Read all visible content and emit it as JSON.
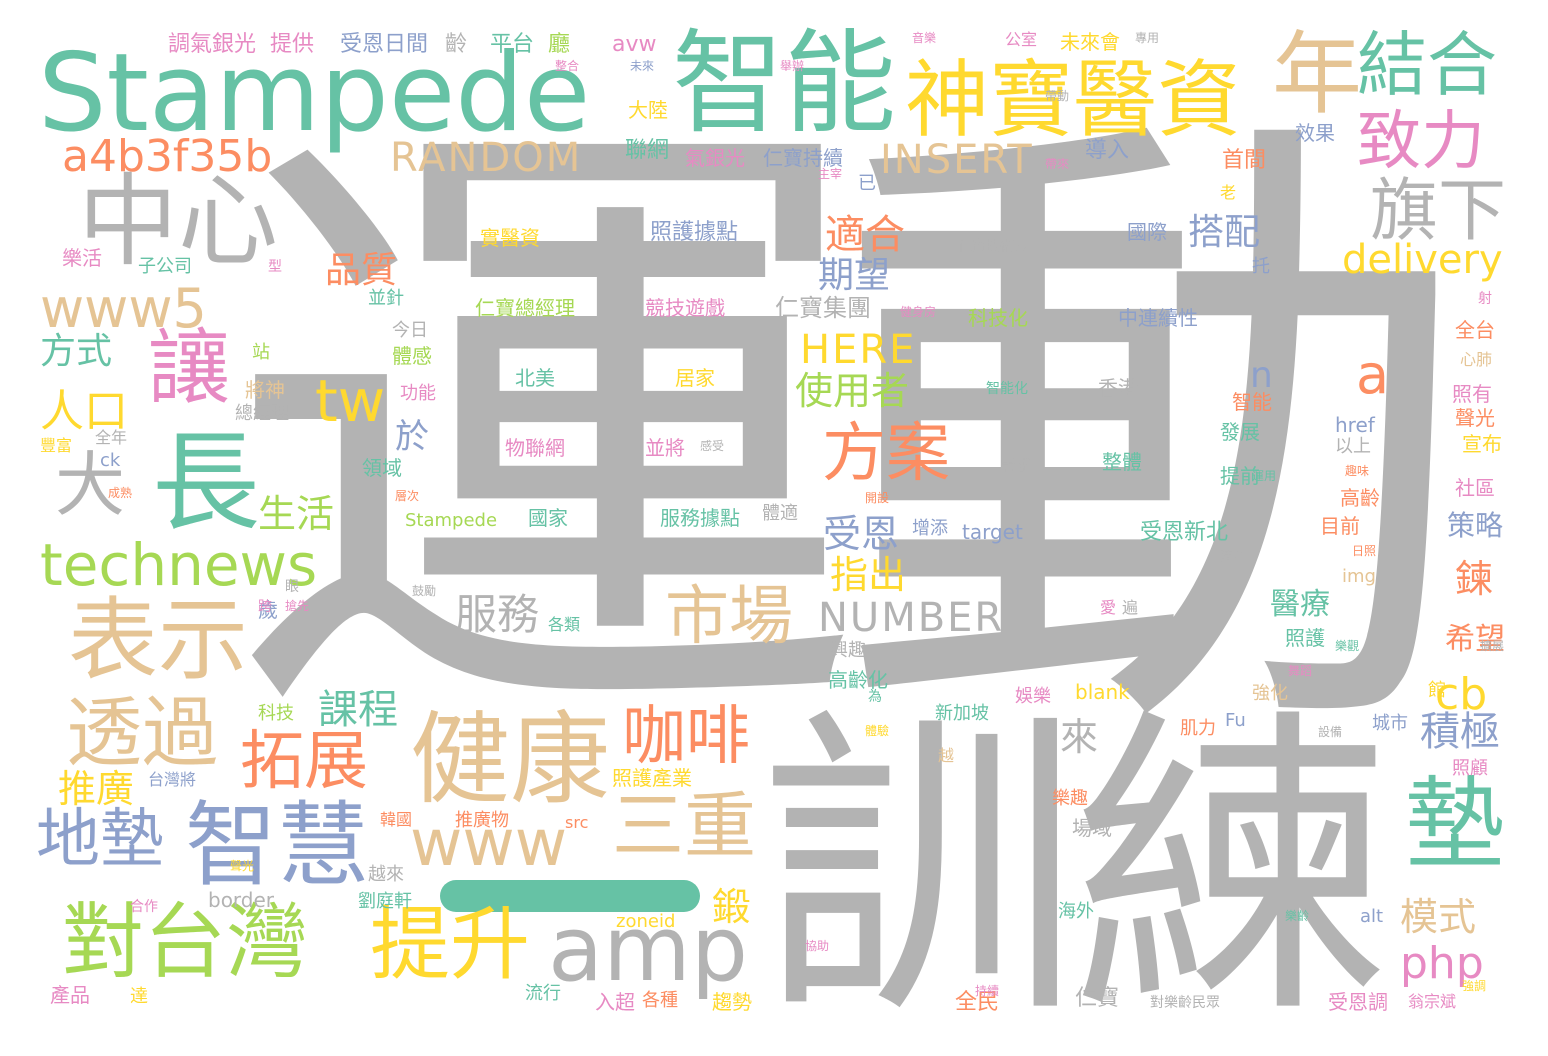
{
  "palette": {
    "gray": "#b3b3b3",
    "green": "#66c2a5",
    "tan": "#e5c494",
    "yellow": "#ffd92f",
    "blue": "#8da0cb",
    "pink": "#e78ac3",
    "lime": "#a6d854",
    "orange": "#fc8d62"
  },
  "bar_color": "green",
  "words": [
    {
      "text": "運動",
      "color": "gray"
    },
    {
      "text": "訓練",
      "color": "gray"
    },
    {
      "text": "Stampede",
      "color": "green"
    },
    {
      "text": "智能",
      "color": "green"
    },
    {
      "text": "神寶醫資",
      "color": "yellow"
    },
    {
      "text": "年",
      "color": "tan"
    },
    {
      "text": "結合",
      "color": "green"
    },
    {
      "text": "中心",
      "color": "gray"
    },
    {
      "text": "a4b3f35b",
      "color": "orange"
    },
    {
      "text": "RANDOM",
      "color": "tan"
    },
    {
      "text": "INSERT",
      "color": "tan"
    },
    {
      "text": "致力",
      "color": "pink"
    },
    {
      "text": "旗下",
      "color": "gray"
    },
    {
      "text": "www5",
      "color": "tan"
    },
    {
      "text": "讓",
      "color": "pink"
    },
    {
      "text": "長",
      "color": "green"
    },
    {
      "text": "大",
      "color": "gray"
    },
    {
      "text": "人口",
      "color": "yellow"
    },
    {
      "text": "方式",
      "color": "green"
    },
    {
      "text": "tw",
      "color": "yellow"
    },
    {
      "text": "品質",
      "color": "orange"
    },
    {
      "text": "適合",
      "color": "orange"
    },
    {
      "text": "期望",
      "color": "blue"
    },
    {
      "text": "搭配",
      "color": "blue"
    },
    {
      "text": "delivery",
      "color": "yellow"
    },
    {
      "text": "HERE",
      "color": "yellow"
    },
    {
      "text": "使用者",
      "color": "lime"
    },
    {
      "text": "仁寶集團",
      "color": "gray"
    },
    {
      "text": "a",
      "color": "orange"
    },
    {
      "text": "n",
      "color": "blue"
    },
    {
      "text": "方案",
      "color": "orange"
    },
    {
      "text": "technews",
      "color": "lime"
    },
    {
      "text": "生活",
      "color": "lime"
    },
    {
      "text": "表示",
      "color": "tan"
    },
    {
      "text": "受恩",
      "color": "blue"
    },
    {
      "text": "指出",
      "color": "yellow"
    },
    {
      "text": "服務",
      "color": "gray"
    },
    {
      "text": "市場",
      "color": "tan"
    },
    {
      "text": "NUMBER",
      "color": "gray"
    },
    {
      "text": "透過",
      "color": "tan"
    },
    {
      "text": "課程",
      "color": "green"
    },
    {
      "text": "拓展",
      "color": "orange"
    },
    {
      "text": "健康",
      "color": "tan"
    },
    {
      "text": "咖啡",
      "color": "orange"
    },
    {
      "text": "三重",
      "color": "tan"
    },
    {
      "text": "www",
      "color": "tan"
    },
    {
      "text": "地墊",
      "color": "blue"
    },
    {
      "text": "智慧",
      "color": "blue"
    },
    {
      "text": "推廣",
      "color": "yellow"
    },
    {
      "text": "對台灣",
      "color": "lime"
    },
    {
      "text": "提升",
      "color": "yellow"
    },
    {
      "text": "amp",
      "color": "gray"
    },
    {
      "text": "墊",
      "color": "green"
    },
    {
      "text": "cb",
      "color": "yellow"
    },
    {
      "text": "積極",
      "color": "blue"
    },
    {
      "text": "php",
      "color": "pink"
    },
    {
      "text": "模式",
      "color": "tan"
    },
    {
      "text": "鍛",
      "color": "yellow"
    },
    {
      "text": "來",
      "color": "gray"
    },
    {
      "text": "於",
      "color": "blue"
    },
    {
      "text": "醫療",
      "color": "green"
    },
    {
      "text": "希望",
      "color": "orange"
    },
    {
      "text": "策略",
      "color": "blue"
    },
    {
      "text": "鍊",
      "color": "orange"
    },
    {
      "text": "調氣銀光",
      "color": "pink"
    },
    {
      "text": "提供",
      "color": "pink"
    },
    {
      "text": "受恩日間",
      "color": "blue"
    },
    {
      "text": "齡",
      "color": "gray"
    },
    {
      "text": "平台",
      "color": "green"
    },
    {
      "text": "廳",
      "color": "lime"
    },
    {
      "text": "avw",
      "color": "pink"
    },
    {
      "text": "未來會",
      "color": "yellow"
    },
    {
      "text": "公室",
      "color": "pink"
    },
    {
      "text": "首間",
      "color": "orange"
    },
    {
      "text": "聯網",
      "color": "green"
    },
    {
      "text": "氣銀光",
      "color": "pink"
    },
    {
      "text": "仁寶持續",
      "color": "blue"
    },
    {
      "text": "導入",
      "color": "blue"
    },
    {
      "text": "效果",
      "color": "blue"
    },
    {
      "text": "大陸",
      "color": "yellow"
    },
    {
      "text": "已",
      "color": "blue"
    },
    {
      "text": "照護據點",
      "color": "blue"
    },
    {
      "text": "實醫資",
      "color": "yellow"
    },
    {
      "text": "國際",
      "color": "blue"
    },
    {
      "text": "樂活",
      "color": "pink"
    },
    {
      "text": "子公司",
      "color": "green"
    },
    {
      "text": "並針",
      "color": "green"
    },
    {
      "text": "仁寶總經理",
      "color": "lime"
    },
    {
      "text": "競技遊戲",
      "color": "pink"
    },
    {
      "text": "科技化",
      "color": "lime"
    },
    {
      "text": "中連續性",
      "color": "blue"
    },
    {
      "text": "今日",
      "color": "gray"
    },
    {
      "text": "體感",
      "color": "lime"
    },
    {
      "text": "站",
      "color": "lime"
    },
    {
      "text": "將神",
      "color": "tan"
    },
    {
      "text": "總經理",
      "color": "gray"
    },
    {
      "text": "功能",
      "color": "pink"
    },
    {
      "text": "北美",
      "color": "green"
    },
    {
      "text": "居家",
      "color": "yellow"
    },
    {
      "text": "智能化",
      "color": "green"
    },
    {
      "text": "香港",
      "color": "gray"
    },
    {
      "text": "智能",
      "color": "orange"
    },
    {
      "text": "href",
      "color": "blue"
    },
    {
      "text": "以上",
      "color": "gray"
    },
    {
      "text": "全台",
      "color": "orange"
    },
    {
      "text": "心肺",
      "color": "tan"
    },
    {
      "text": "照有",
      "color": "pink"
    },
    {
      "text": "聲光",
      "color": "orange"
    },
    {
      "text": "宣布",
      "color": "yellow"
    },
    {
      "text": "全年",
      "color": "gray"
    },
    {
      "text": "豐富",
      "color": "yellow"
    },
    {
      "text": "ck",
      "color": "blue"
    },
    {
      "text": "物聯網",
      "color": "pink"
    },
    {
      "text": "並將",
      "color": "pink"
    },
    {
      "text": "需求",
      "color": "gray"
    },
    {
      "text": "整體",
      "color": "green"
    },
    {
      "text": "發展",
      "color": "green"
    },
    {
      "text": "提前",
      "color": "green"
    },
    {
      "text": "高齡",
      "color": "orange"
    },
    {
      "text": "社區",
      "color": "pink"
    },
    {
      "text": "領域",
      "color": "green"
    },
    {
      "text": "Stampede",
      "color": "lime"
    },
    {
      "text": "國家",
      "color": "green"
    },
    {
      "text": "服務據點",
      "color": "green"
    },
    {
      "text": "體適",
      "color": "gray"
    },
    {
      "text": "增添",
      "color": "blue"
    },
    {
      "text": "target",
      "color": "blue"
    },
    {
      "text": "受恩新北",
      "color": "green"
    },
    {
      "text": "目前",
      "color": "orange"
    },
    {
      "text": "歲",
      "color": "blue"
    },
    {
      "text": "各類",
      "color": "green"
    },
    {
      "text": "img",
      "color": "tan"
    },
    {
      "text": "興趣",
      "color": "gray"
    },
    {
      "text": "照護",
      "color": "green"
    },
    {
      "text": "高齡化",
      "color": "green"
    },
    {
      "text": "科技",
      "color": "lime"
    },
    {
      "text": "新加坡",
      "color": "green"
    },
    {
      "text": "娛樂",
      "color": "pink"
    },
    {
      "text": "blank",
      "color": "yellow"
    },
    {
      "text": "強化",
      "color": "tan"
    },
    {
      "text": "館",
      "color": "yellow"
    },
    {
      "text": "肌力",
      "color": "orange"
    },
    {
      "text": "Fu",
      "color": "blue"
    },
    {
      "text": "城市",
      "color": "blue"
    },
    {
      "text": "照顧",
      "color": "pink"
    },
    {
      "text": "台灣將",
      "color": "blue"
    },
    {
      "text": "越",
      "color": "tan"
    },
    {
      "text": "照護產業",
      "color": "yellow"
    },
    {
      "text": "韓國",
      "color": "orange"
    },
    {
      "text": "推廣物",
      "color": "orange"
    },
    {
      "text": "src",
      "color": "orange"
    },
    {
      "text": "樂趣",
      "color": "orange"
    },
    {
      "text": "場域",
      "color": "gray"
    },
    {
      "text": "越來",
      "color": "gray"
    },
    {
      "text": "border",
      "color": "gray"
    },
    {
      "text": "劉庭軒",
      "color": "green"
    },
    {
      "text": "海外",
      "color": "green"
    },
    {
      "text": "alt",
      "color": "blue"
    },
    {
      "text": "zoneid",
      "color": "yellow"
    },
    {
      "text": "產品",
      "color": "pink"
    },
    {
      "text": "達",
      "color": "yellow"
    },
    {
      "text": "流行",
      "color": "green"
    },
    {
      "text": "入超",
      "color": "pink"
    },
    {
      "text": "各種",
      "color": "orange"
    },
    {
      "text": "趨勢",
      "color": "yellow"
    },
    {
      "text": "全民",
      "color": "orange"
    },
    {
      "text": "仁寶",
      "color": "gray"
    },
    {
      "text": "對樂齡民眾",
      "color": "gray"
    },
    {
      "text": "受恩調",
      "color": "pink"
    },
    {
      "text": "翁宗斌",
      "color": "pink"
    },
    {
      "text": "合作",
      "color": "pink"
    },
    {
      "text": "型",
      "color": "pink"
    },
    {
      "text": "托",
      "color": "blue"
    },
    {
      "text": "老",
      "color": "yellow"
    },
    {
      "text": "射",
      "color": "pink"
    },
    {
      "text": "跨",
      "color": "pink"
    },
    {
      "text": "為",
      "color": "green"
    },
    {
      "text": "愛",
      "color": "pink"
    },
    {
      "text": "遍",
      "color": "gray"
    },
    {
      "text": "眼",
      "color": "gray"
    },
    {
      "text": "仁寶技術長",
      "color": "gray"
    },
    {
      "text": "健身房",
      "color": "pink"
    },
    {
      "text": "舞蹈",
      "color": "pink"
    },
    {
      "text": "主宰",
      "color": "pink"
    },
    {
      "text": "帶來",
      "color": "pink"
    },
    {
      "text": "未來",
      "color": "blue"
    },
    {
      "text": "音樂",
      "color": "pink"
    },
    {
      "text": "專用",
      "color": "gray"
    },
    {
      "text": "樂觀",
      "color": "green"
    },
    {
      "text": "感受",
      "color": "gray"
    },
    {
      "text": "樂齡",
      "color": "green"
    },
    {
      "text": "體驗",
      "color": "yellow"
    },
    {
      "text": "趣味",
      "color": "orange"
    },
    {
      "text": "開設",
      "color": "orange"
    },
    {
      "text": "層次",
      "color": "orange"
    },
    {
      "text": "成熟",
      "color": "orange"
    },
    {
      "text": "鼓勵",
      "color": "gray"
    },
    {
      "text": "日照",
      "color": "orange"
    },
    {
      "text": "搶先",
      "color": "pink"
    },
    {
      "text": "設備",
      "color": "gray"
    },
    {
      "text": "強調",
      "color": "yellow"
    },
    {
      "text": "協助",
      "color": "pink"
    },
    {
      "text": "運用",
      "color": "green"
    },
    {
      "text": "陪伴",
      "color": "gray"
    },
    {
      "text": "擴展",
      "color": "gray"
    },
    {
      "text": "聲光",
      "color": "yellow"
    },
    {
      "text": "整合",
      "color": "pink"
    },
    {
      "text": "持續",
      "color": "pink"
    },
    {
      "text": "舉辦",
      "color": "pink"
    },
    {
      "text": "帶動",
      "color": "gray"
    },
    {
      "text": "簡單",
      "color": "yellow"
    },
    {
      "text": "延伸",
      "color": "orange"
    },
    {
      "text": "營運",
      "color": "pink"
    },
    {
      "text": "公司",
      "color": "gray"
    }
  ]
}
